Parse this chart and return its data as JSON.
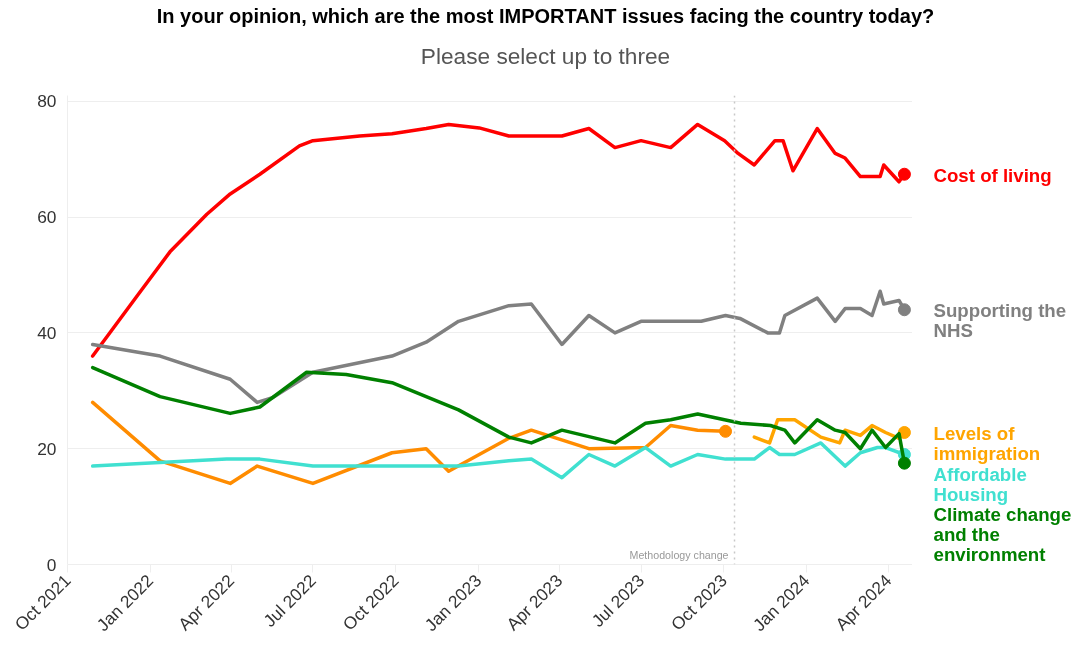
{
  "chart_data": {
    "type": "line",
    "title": "In your opinion, which are the most IMPORTANT issues facing the country today?",
    "subtitle": "Please select up to three",
    "xlim": [
      "2021-10-01",
      "2024-04-28"
    ],
    "ylim": [
      0,
      81
    ],
    "xticks": [
      {
        "value": "2021-10-01",
        "label": "Oct 2021"
      },
      {
        "value": "2022-01-01",
        "label": "Jan 2022"
      },
      {
        "value": "2022-04-01",
        "label": "Apr 2022"
      },
      {
        "value": "2022-07-01",
        "label": "Jul 2022"
      },
      {
        "value": "2022-10-01",
        "label": "Oct 2022"
      },
      {
        "value": "2023-01-01",
        "label": "Jan 2023"
      },
      {
        "value": "2023-04-01",
        "label": "Apr 2023"
      },
      {
        "value": "2023-07-01",
        "label": "Jul 2023"
      },
      {
        "value": "2023-10-01",
        "label": "Oct 2023"
      },
      {
        "value": "2024-01-01",
        "label": "Jan 2024"
      },
      {
        "value": "2024-04-01",
        "label": "Apr 2024"
      }
    ],
    "yticks": [
      0,
      20,
      40,
      60,
      80
    ],
    "grid": "y",
    "line_style": "solid",
    "ref_lines": [
      {
        "axis": "x",
        "value": "2023-10-13",
        "label": "Methodology change",
        "color": "#c8c8c8",
        "line_style": "dotted"
      }
    ],
    "series": [
      {
        "name": "Cost of living",
        "color": "#ff0000",
        "x": [
          "2021-10-29",
          "2021-12-18",
          "2022-01-23",
          "2022-03-05",
          "2022-03-31",
          "2022-05-03",
          "2022-06-16",
          "2022-07-01",
          "2022-08-22",
          "2022-09-27",
          "2022-11-04",
          "2022-11-29",
          "2023-01-02",
          "2023-02-04",
          "2023-03-01",
          "2023-04-04",
          "2023-05-04",
          "2023-06-02",
          "2023-07-01",
          "2023-08-03",
          "2023-09-02",
          "2023-10-02",
          "2023-10-17",
          "2023-11-04",
          "2023-11-27",
          "2023-12-06",
          "2023-12-17",
          "2024-01-13",
          "2024-02-02",
          "2024-02-13",
          "2024-03-01",
          "2024-03-23",
          "2024-03-27",
          "2024-04-13",
          "2024-04-19"
        ],
        "values": [
          36,
          46.5,
          54,
          60.5,
          64,
          67.4,
          72.3,
          73.2,
          74,
          74.4,
          75.3,
          76,
          75.4,
          74,
          74,
          74,
          75.3,
          72,
          73.2,
          72,
          76,
          73.2,
          71,
          69,
          73.2,
          73.2,
          68,
          75.3,
          71,
          70.2,
          67,
          67,
          69,
          66.1,
          67.4
        ]
      },
      {
        "name": "Supporting the NHS",
        "color": "#808080",
        "x": [
          "2021-10-29",
          "2022-01-12",
          "2022-03-31",
          "2022-04-30",
          "2022-05-17",
          "2022-07-01",
          "2022-09-27",
          "2022-11-04",
          "2022-12-10",
          "2023-02-04",
          "2023-03-01",
          "2023-04-04",
          "2023-05-04",
          "2023-06-02",
          "2023-07-01",
          "2023-09-06",
          "2023-10-03",
          "2023-10-19",
          "2023-11-19",
          "2023-12-02",
          "2023-12-08",
          "2024-01-13",
          "2024-02-02",
          "2024-02-13",
          "2024-03-01",
          "2024-03-14",
          "2024-03-23",
          "2024-03-27",
          "2024-04-13",
          "2024-04-19"
        ],
        "values": [
          38,
          36,
          32,
          28,
          28.8,
          33.2,
          36,
          38.4,
          42,
          44.7,
          45,
          38,
          43,
          40,
          42,
          42,
          43,
          42.5,
          40,
          40,
          43,
          46,
          42,
          44.2,
          44.2,
          43,
          47.2,
          45,
          45.6,
          44
        ]
      },
      {
        "color": "#ff8c00",
        "x": [
          "2021-10-29",
          "2022-01-12",
          "2022-03-31",
          "2022-04-30",
          "2022-07-01",
          "2022-09-27",
          "2022-11-04",
          "2022-11-29",
          "2023-02-04",
          "2023-03-01",
          "2023-05-04",
          "2023-07-06",
          "2023-08-03",
          "2023-09-02",
          "2023-10-03"
        ],
        "values": [
          28,
          17.9,
          14,
          17,
          14,
          19.3,
          20,
          16.1,
          21.8,
          23.2,
          20,
          20.2,
          24,
          23.2,
          23
        ]
      },
      {
        "name": "Levels of immigration",
        "color": "#ffa500",
        "x": [
          "2023-11-04",
          "2023-11-21",
          "2023-11-30",
          "2023-12-19",
          "2024-01-17",
          "2024-02-07",
          "2024-02-13",
          "2024-03-01",
          "2024-03-14",
          "2024-03-29",
          "2024-04-13",
          "2024-04-19"
        ],
        "values": [
          22,
          21,
          25,
          25,
          22,
          21,
          23.2,
          22.3,
          24,
          22.8,
          21.8,
          22.8
        ]
      },
      {
        "name": "Affordable Housing",
        "color": "#40e0d0",
        "x": [
          "2021-10-29",
          "2022-03-27",
          "2022-05-03",
          "2022-07-01",
          "2022-12-10",
          "2023-02-04",
          "2023-03-01",
          "2023-04-04",
          "2023-05-04",
          "2023-06-02",
          "2023-07-06",
          "2023-08-03",
          "2023-09-02",
          "2023-10-03",
          "2023-11-04",
          "2023-11-21",
          "2023-12-02",
          "2023-12-19",
          "2024-01-17",
          "2024-02-13",
          "2024-03-01",
          "2024-03-20",
          "2024-03-29",
          "2024-04-19"
        ],
        "values": [
          17,
          18.2,
          18.2,
          17,
          17,
          17.9,
          18.2,
          15,
          19,
          17,
          20.2,
          17,
          19,
          18.2,
          18.2,
          20.2,
          19,
          19,
          21,
          17,
          19.3,
          20.2,
          20.2,
          19
        ]
      },
      {
        "name": "Climate change and the environment",
        "color": "#008000",
        "x": [
          "2021-10-29",
          "2022-01-12",
          "2022-03-31",
          "2022-05-03",
          "2022-06-24",
          "2022-08-07",
          "2022-09-27",
          "2022-12-10",
          "2023-02-04",
          "2023-03-01",
          "2023-04-04",
          "2023-06-02",
          "2023-07-06",
          "2023-08-03",
          "2023-09-02",
          "2023-10-20",
          "2023-11-22",
          "2023-12-08",
          "2023-12-19",
          "2024-01-13",
          "2024-02-02",
          "2024-02-13",
          "2024-03-01",
          "2024-03-14",
          "2024-03-29",
          "2024-04-13",
          "2024-04-19"
        ],
        "values": [
          34,
          29,
          26.1,
          27.2,
          33.2,
          32.8,
          31.4,
          26.7,
          22,
          21,
          23.2,
          21,
          24.4,
          25,
          26,
          24.4,
          24,
          23.2,
          21,
          25,
          23.2,
          22.8,
          20,
          23.2,
          20.2,
          22.6,
          17.5
        ]
      }
    ]
  }
}
